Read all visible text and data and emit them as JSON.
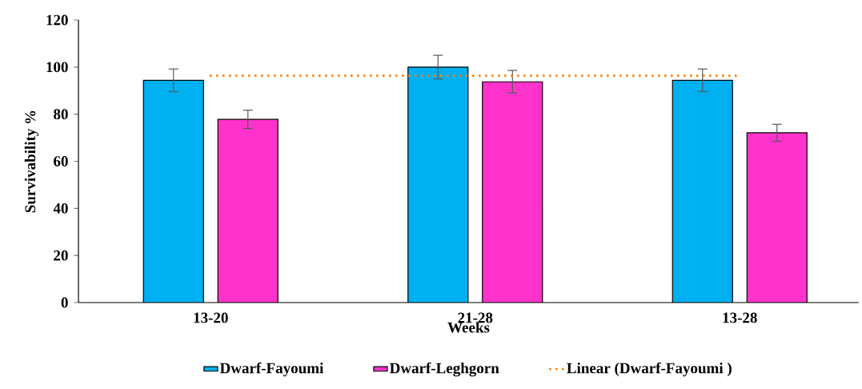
{
  "chart_data": {
    "type": "bar",
    "xlabel": "Weeks",
    "ylabel": "Survivability %",
    "categories": [
      "13-20",
      "21-28",
      "13-28"
    ],
    "ylim": [
      0,
      120
    ],
    "yticks": [
      0,
      20,
      40,
      60,
      80,
      100,
      120
    ],
    "legend": "bottom",
    "series": [
      {
        "name": "Dwarf-Fayoumi",
        "color": "#00b0f0",
        "values": [
          94.4,
          100,
          94.4
        ],
        "errors": [
          4.8,
          5,
          4.8
        ]
      },
      {
        "name": "Dwarf-Leghgorn",
        "color": "#ff33cc",
        "values": [
          77.8,
          93.8,
          72.1
        ],
        "errors": [
          3.9,
          4.8,
          3.6
        ]
      },
      {
        "name": "Linear (Dwarf-Fayoumi )",
        "type": "line",
        "color": "#ff7f00",
        "line_style": "dotted",
        "marker": "none",
        "values": [
          96.4,
          96.4,
          96.4
        ]
      }
    ]
  }
}
